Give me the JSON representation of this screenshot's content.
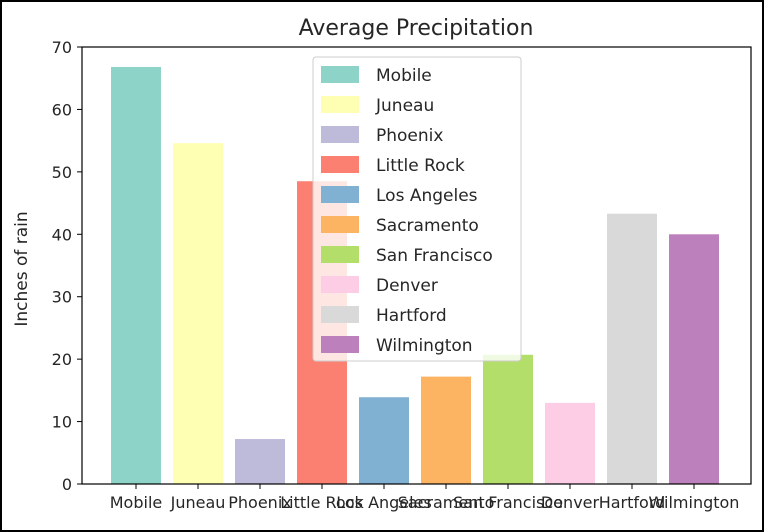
{
  "chart_data": {
    "type": "bar",
    "title": "Average Precipitation",
    "xlabel": "",
    "ylabel": "Inches of rain",
    "ylim": [
      0,
      70
    ],
    "yticks": [
      0,
      10,
      20,
      30,
      40,
      50,
      60,
      70
    ],
    "categories": [
      "Mobile",
      "Juneau",
      "Phoenix",
      "Little Rock",
      "Los Angeles",
      "Sacramento",
      "San Francisco",
      "Denver",
      "Hartford",
      "Wilmington"
    ],
    "values": [
      66.8,
      54.6,
      7.2,
      48.5,
      13.9,
      17.2,
      20.7,
      13.0,
      43.3,
      40.0
    ],
    "colors": [
      "#8dd3c7",
      "#ffffb3",
      "#bebada",
      "#fb8072",
      "#80b1d3",
      "#fdb462",
      "#b3de69",
      "#fccde5",
      "#d9d9d9",
      "#bc80bd"
    ],
    "legend": {
      "location": "upper center",
      "entries": [
        "Mobile",
        "Juneau",
        "Phoenix",
        "Little Rock",
        "Los Angeles",
        "Sacramento",
        "San Francisco",
        "Denver",
        "Hartford",
        "Wilmington"
      ]
    },
    "grid": false
  }
}
